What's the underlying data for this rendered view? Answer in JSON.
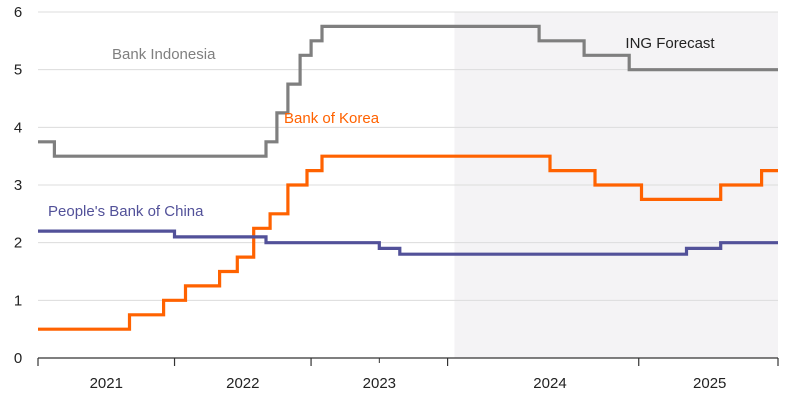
{
  "chart_data": {
    "type": "line",
    "step": true,
    "forecast_label": "ING Forecast",
    "forecast_start": 2023.55,
    "xlim": [
      2020.5,
      2025.92
    ],
    "ylim": [
      0,
      6
    ],
    "y_ticks": [
      0,
      1,
      2,
      3,
      4,
      5,
      6
    ],
    "x_year_labels": [
      {
        "label": "2021",
        "center": 2021.0
      },
      {
        "label": "2022",
        "center": 2022.0
      },
      {
        "label": "2023",
        "center": 2023.0
      },
      {
        "label": "2024",
        "center": 2024.25
      },
      {
        "label": "2025",
        "center": 2025.42
      }
    ],
    "x_major_ticks": [
      2020.5,
      2021.5,
      2022.5,
      2023.5,
      2024.9,
      2025.92
    ],
    "x_minor_ticks": [
      2023.0
    ],
    "grid": "horizontal",
    "colors": {
      "bank_indonesia": "#7f7f7f",
      "bank_of_korea": "#ff6200",
      "pboc": "#525199",
      "forecast_shade": "#f4f3f5",
      "grid": "#dcdcdc",
      "axis": "#333333"
    },
    "series": [
      {
        "key": "bank_indonesia",
        "name": "Bank Indonesia",
        "points": [
          [
            2020.5,
            3.75
          ],
          [
            2020.62,
            3.5
          ],
          [
            2022.17,
            3.75
          ],
          [
            2022.25,
            4.25
          ],
          [
            2022.33,
            4.75
          ],
          [
            2022.42,
            5.25
          ],
          [
            2022.5,
            5.5
          ],
          [
            2022.58,
            5.75
          ],
          [
            2024.17,
            5.5
          ],
          [
            2024.5,
            5.25
          ],
          [
            2024.83,
            5.0
          ],
          [
            2025.92,
            5.0
          ]
        ]
      },
      {
        "key": "bank_of_korea",
        "name": "Bank of Korea",
        "points": [
          [
            2020.5,
            0.5
          ],
          [
            2021.17,
            0.75
          ],
          [
            2021.42,
            1.0
          ],
          [
            2021.58,
            1.25
          ],
          [
            2021.83,
            1.5
          ],
          [
            2021.96,
            1.75
          ],
          [
            2022.08,
            2.25
          ],
          [
            2022.2,
            2.5
          ],
          [
            2022.33,
            3.0
          ],
          [
            2022.47,
            3.25
          ],
          [
            2022.58,
            3.5
          ],
          [
            2024.25,
            3.25
          ],
          [
            2024.58,
            3.0
          ],
          [
            2024.92,
            2.75
          ],
          [
            2025.5,
            3.0
          ],
          [
            2025.8,
            3.25
          ],
          [
            2025.92,
            3.25
          ]
        ]
      },
      {
        "key": "pboc",
        "name": "People's Bank of China",
        "points": [
          [
            2020.5,
            2.2
          ],
          [
            2021.5,
            2.1
          ],
          [
            2022.17,
            2.0
          ],
          [
            2023.0,
            1.9
          ],
          [
            2023.15,
            1.8
          ],
          [
            2025.25,
            1.9
          ],
          [
            2025.5,
            2.0
          ],
          [
            2025.92,
            2.0
          ]
        ]
      }
    ]
  }
}
